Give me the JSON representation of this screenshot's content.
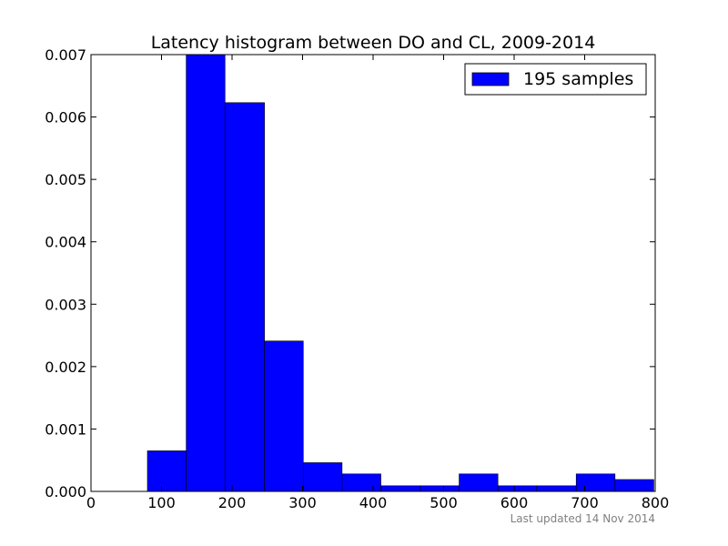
{
  "chart_data": {
    "type": "bar",
    "title": "Latency histogram between DO and CL, 2009-2014",
    "xlabel": "",
    "ylabel": "",
    "xlim": [
      0,
      800
    ],
    "ylim": [
      0,
      0.007
    ],
    "x_ticks": [
      0,
      100,
      200,
      300,
      400,
      500,
      600,
      700,
      800
    ],
    "x_tick_labels": [
      "0",
      "100",
      "200",
      "300",
      "400",
      "500",
      "600",
      "700",
      "800"
    ],
    "y_ticks": [
      0,
      0.001,
      0.002,
      0.003,
      0.004,
      0.005,
      0.006,
      0.007
    ],
    "y_tick_labels": [
      "0.000",
      "0.001",
      "0.002",
      "0.003",
      "0.004",
      "0.005",
      "0.006",
      "0.007"
    ],
    "grid": false,
    "legend_position": "top-right",
    "series": [
      {
        "name": "195 samples",
        "color": "#0000ff",
        "bins": [
          {
            "x0": 80,
            "x1": 135,
            "value": 0.00065
          },
          {
            "x0": 135,
            "x1": 190,
            "value": 0.007
          },
          {
            "x0": 190,
            "x1": 246,
            "value": 0.00623
          },
          {
            "x0": 246,
            "x1": 301,
            "value": 0.00241
          },
          {
            "x0": 301,
            "x1": 356,
            "value": 0.00046
          },
          {
            "x0": 356,
            "x1": 411,
            "value": 0.00028
          },
          {
            "x0": 411,
            "x1": 467,
            "value": 9e-05
          },
          {
            "x0": 467,
            "x1": 522,
            "value": 9e-05
          },
          {
            "x0": 522,
            "x1": 577,
            "value": 0.00028
          },
          {
            "x0": 577,
            "x1": 632,
            "value": 9e-05
          },
          {
            "x0": 632,
            "x1": 688,
            "value": 9e-05
          },
          {
            "x0": 688,
            "x1": 743,
            "value": 0.00028
          },
          {
            "x0": 743,
            "x1": 798,
            "value": 0.00019
          }
        ]
      }
    ],
    "annotation": "Last updated 14 Nov 2014"
  }
}
